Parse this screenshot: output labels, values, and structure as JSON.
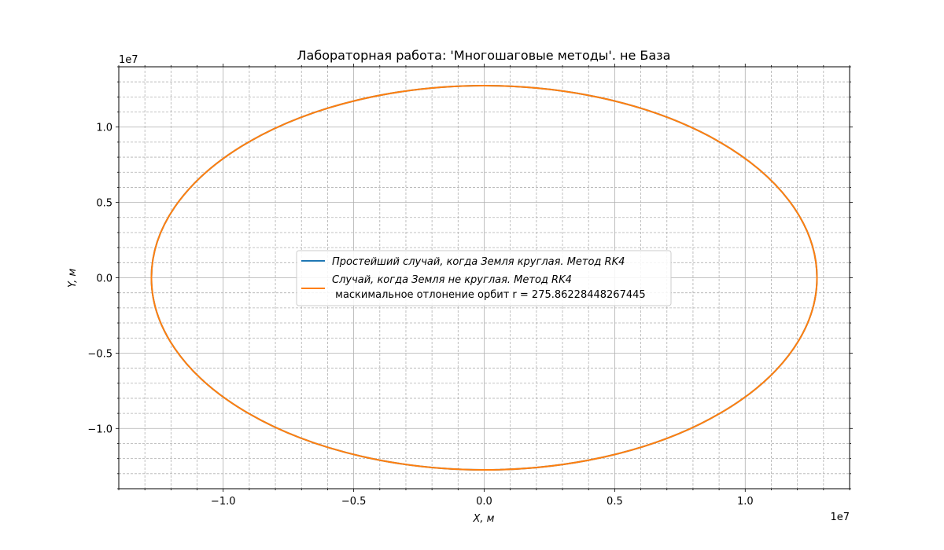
{
  "chart_data": {
    "type": "line",
    "title": "Лабораторная работа: 'Многошаговые методы'. не База",
    "xlabel": "X, м",
    "ylabel": "Y, м",
    "x_offset_text": "1e7",
    "y_offset_text": "1e7",
    "xlim": [
      -14000000,
      14000000
    ],
    "ylim": [
      -14000000,
      14000000
    ],
    "x_ticks": [
      -10000000,
      -5000000,
      0,
      5000000,
      10000000
    ],
    "x_tick_labels": [
      "−1.0",
      "−0.5",
      "0.0",
      "0.5",
      "1.0"
    ],
    "y_ticks": [
      -10000000,
      -5000000,
      0,
      5000000,
      10000000
    ],
    "y_tick_labels": [
      "−1.0",
      "−0.5",
      "0.0",
      "0.5",
      "1.0"
    ],
    "x_minor_step": 1000000,
    "y_minor_step": 1000000,
    "grid": true,
    "legend_position": "center",
    "series": [
      {
        "name": "Простейший случай, когда Земля круглая. Метод RK4",
        "color": "#1f77b4",
        "orbit": {
          "cx": 0,
          "cy": 0,
          "rx": 12750000,
          "ry": 12750000
        }
      },
      {
        "name": "Случай, когда Земля не круглая. Метод RK4",
        "name_line2": " маскимальное отлонение орбит r = 275.86228448267445",
        "color": "#ff7f0e",
        "orbit": {
          "cx": 0,
          "cy": 0,
          "rx": 12750000,
          "ry": 12750000
        }
      }
    ]
  }
}
